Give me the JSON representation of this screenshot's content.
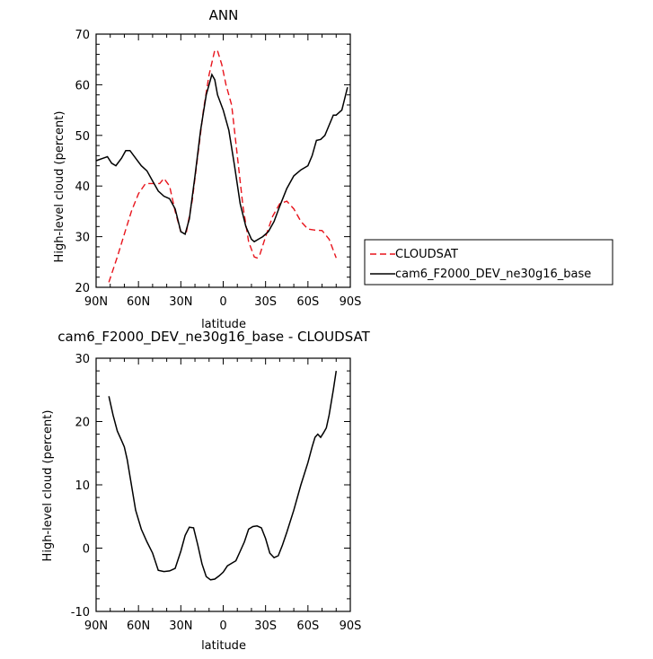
{
  "chart_data": [
    {
      "type": "line",
      "title": "ANN",
      "xlabel": "latitude",
      "ylabel": "High-level cloud (percent)",
      "xlim": [
        90,
        -90
      ],
      "ylim": [
        20,
        70
      ],
      "xticks": [
        90,
        60,
        30,
        0,
        -30,
        -60,
        -90
      ],
      "xtick_labels": [
        "90N",
        "60N",
        "30N",
        "0",
        "30S",
        "60S",
        "90S"
      ],
      "yticks": [
        20,
        30,
        40,
        50,
        60,
        70
      ],
      "ytick_labels": [
        "20",
        "30",
        "40",
        "50",
        "60",
        "70"
      ],
      "grid": false,
      "legend_position": "right",
      "series": [
        {
          "name": "CLOUDSAT",
          "color": "#e8141c",
          "dash": "dashed",
          "x": [
            81,
            75,
            70,
            65,
            60,
            55,
            50,
            45,
            42,
            38,
            34,
            30,
            26,
            22,
            18,
            14,
            10,
            6,
            4,
            1,
            -2,
            -6,
            -10,
            -14,
            -18,
            -22,
            -24,
            -26,
            -30,
            -35,
            -40,
            -45,
            -50,
            -55,
            -60,
            -65,
            -70,
            -75,
            -80
          ],
          "y": [
            21,
            26,
            30.5,
            35,
            38.5,
            40.5,
            40.5,
            40.5,
            41.5,
            40,
            35,
            31,
            31,
            37,
            46,
            55,
            62,
            66.8,
            66.7,
            64,
            60,
            56,
            46,
            36,
            29,
            26,
            25.8,
            26.5,
            30,
            34,
            36.5,
            37,
            35.5,
            33,
            31.5,
            31.3,
            31.2,
            29.5,
            25.8
          ]
        },
        {
          "name": "cam6_F2000_DEV_ne30g16_base",
          "color": "#000000",
          "dash": "solid",
          "x": [
            90,
            85,
            82,
            79,
            76,
            72,
            69,
            66,
            62,
            58,
            54,
            50,
            46,
            42,
            38,
            34,
            30,
            27,
            24,
            20,
            16,
            12,
            8,
            6,
            4,
            0,
            -4,
            -8,
            -12,
            -16,
            -20,
            -22,
            -25,
            -28,
            -32,
            -36,
            -40,
            -45,
            -50,
            -55,
            -60,
            -63,
            -66,
            -69,
            -72,
            -75,
            -78,
            -80,
            -84,
            -88
          ],
          "y": [
            45,
            45.5,
            45.8,
            44.5,
            44,
            45.5,
            47,
            47,
            45.5,
            44,
            43,
            41,
            39,
            38,
            37.5,
            35.5,
            31,
            30.5,
            33.5,
            42,
            51,
            58,
            62,
            61,
            58,
            55,
            51,
            44,
            36.5,
            32,
            29.5,
            29,
            29.5,
            30,
            31,
            33,
            36,
            39.5,
            42,
            43.2,
            44,
            46,
            49,
            49.2,
            50,
            52,
            54,
            54,
            55,
            59.5
          ]
        }
      ]
    },
    {
      "type": "line",
      "title": "cam6_F2000_DEV_ne30g16_base - CLOUDSAT",
      "xlabel": "latitude",
      "ylabel": "High-level cloud (percent)",
      "xlim": [
        90,
        -90
      ],
      "ylim": [
        -10,
        30
      ],
      "xticks": [
        90,
        60,
        30,
        0,
        -30,
        -60,
        -90
      ],
      "xtick_labels": [
        "90N",
        "60N",
        "30N",
        "0",
        "30S",
        "60S",
        "90S"
      ],
      "yticks": [
        -10,
        0,
        10,
        20,
        30
      ],
      "ytick_labels": [
        "-10",
        "0",
        "10",
        "20",
        "30"
      ],
      "grid": false,
      "series": [
        {
          "color": "#000000",
          "dash": "solid",
          "x": [
            81,
            78,
            75,
            72,
            70,
            68,
            65,
            62,
            58,
            54,
            50,
            46,
            42,
            38,
            34,
            30,
            27,
            24,
            21,
            18,
            15,
            12,
            9,
            6,
            3,
            0,
            -3,
            -6,
            -9,
            -12,
            -15,
            -18,
            -21,
            -24,
            -27,
            -30,
            -33,
            -36,
            -39,
            -42,
            -45,
            -50,
            -55,
            -60,
            -63,
            -65,
            -67,
            -69,
            -71,
            -73,
            -75,
            -78,
            -80
          ],
          "y": [
            24,
            21,
            18.5,
            17,
            16,
            14,
            10,
            6,
            3,
            1,
            -0.8,
            -3.5,
            -3.7,
            -3.6,
            -3.2,
            -0.5,
            2,
            3.3,
            3.2,
            0.5,
            -2.5,
            -4.5,
            -5,
            -4.9,
            -4.4,
            -3.8,
            -2.8,
            -2.4,
            -2,
            -0.5,
            1,
            3,
            3.4,
            3.5,
            3.2,
            1.5,
            -0.8,
            -1.5,
            -1.2,
            0.5,
            2.5,
            6,
            10,
            13.5,
            16,
            17.5,
            18,
            17.5,
            18.2,
            19,
            21,
            25,
            28
          ]
        }
      ]
    }
  ]
}
